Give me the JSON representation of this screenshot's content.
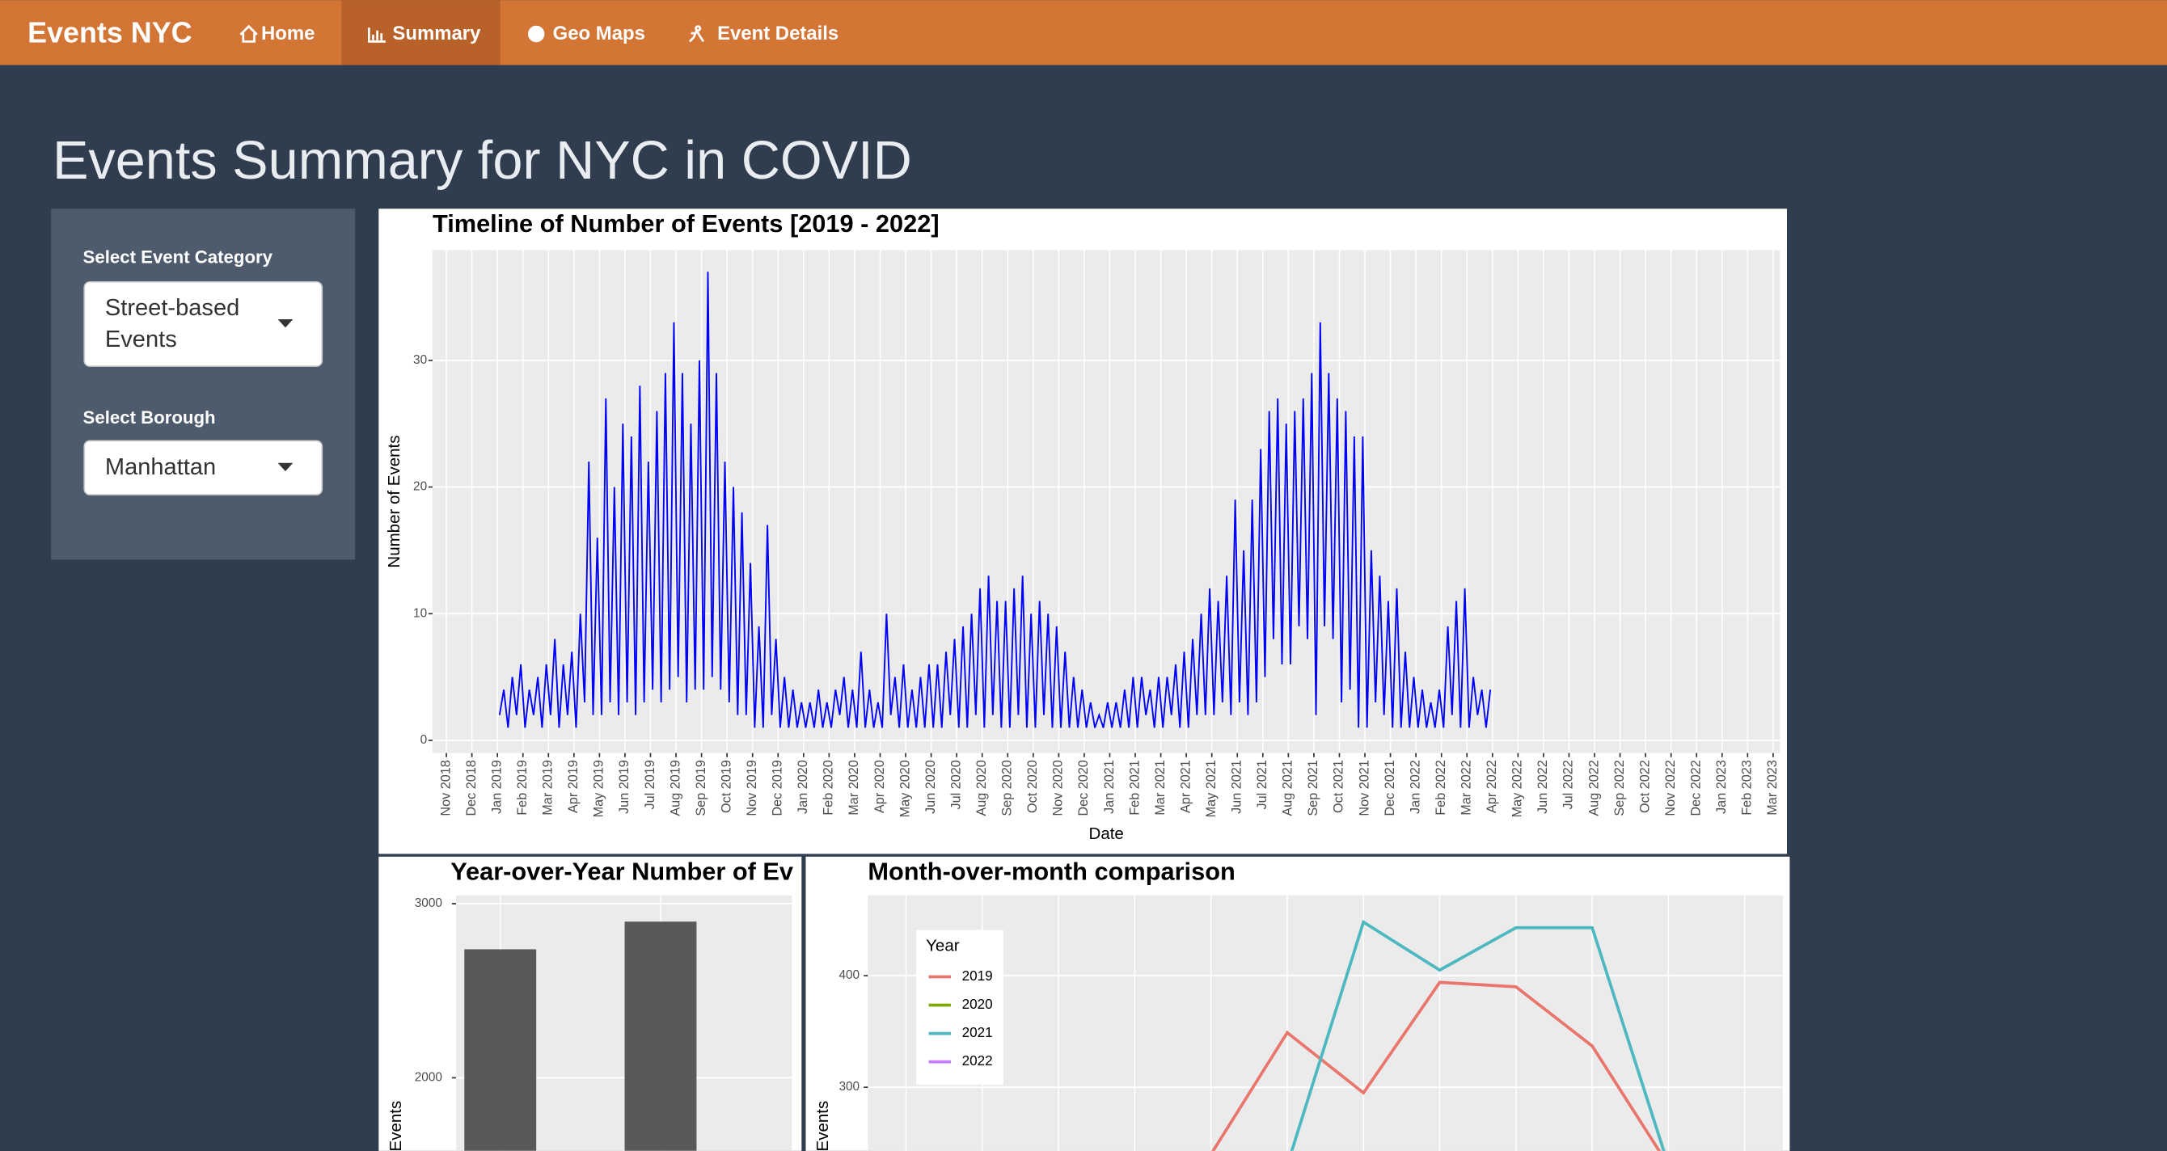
{
  "navbar": {
    "brand": "Events NYC",
    "items": [
      "Home",
      "Summary",
      "Geo Maps",
      "Event Details"
    ],
    "active": 1
  },
  "page_title": "Events Summary for NYC in COVID",
  "sidebar": {
    "category_label": "Select Event Category",
    "category_value": "Street-based Events",
    "borough_label": "Select Borough",
    "borough_value": "Manhattan"
  },
  "chart_data": [
    {
      "type": "line",
      "title": "Timeline of Number of Events [2019 - 2022]",
      "x_label": "Date",
      "y_label": "Number of Events",
      "color": "#0000ff",
      "ylim": [
        -1,
        38.7
      ],
      "yticks": [
        0,
        10,
        20,
        30
      ],
      "grid": true,
      "categories": [
        "Nov 2018",
        "Dec 2018",
        "Jan 2019",
        "Feb 2019",
        "Mar 2019",
        "Apr 2019",
        "May 2019",
        "Jun 2019",
        "Jul 2019",
        "Aug 2019",
        "Sep 2019",
        "Oct 2019",
        "Nov 2019",
        "Dec 2019",
        "Jan 2020",
        "Feb 2020",
        "Mar 2020",
        "Apr 2020",
        "May 2020",
        "Jun 2020",
        "Jul 2020",
        "Aug 2020",
        "Sep 2020",
        "Oct 2020",
        "Nov 2020",
        "Dec 2020",
        "Jan 2021",
        "Feb 2021",
        "Mar 2021",
        "Apr 2021",
        "May 2021",
        "Jun 2021",
        "Jul 2021",
        "Aug 2021",
        "Sep 2021",
        "Oct 2021",
        "Nov 2021",
        "Dec 2021",
        "Jan 2022",
        "Feb 2022",
        "Mar 2022",
        "Apr 2022",
        "May 2022",
        "Jun 2022",
        "Jul 2022",
        "Aug 2022",
        "Sep 2022",
        "Oct 2022",
        "Nov 2022",
        "Dec 2022",
        "Jan 2023",
        "Feb 2023",
        "Mar 2023"
      ],
      "values": [
        null,
        null,
        [
          2,
          4,
          1,
          5,
          2,
          6
        ],
        [
          1,
          4,
          2,
          5,
          1,
          6
        ],
        [
          2,
          8,
          1,
          6,
          2,
          7
        ],
        [
          1,
          10,
          3,
          22,
          2,
          16
        ],
        [
          2,
          27,
          3,
          20,
          2,
          25
        ],
        [
          3,
          24,
          2,
          28,
          3,
          22
        ],
        [
          4,
          26,
          3,
          29,
          4,
          33
        ],
        [
          5,
          29,
          3,
          25,
          4,
          30
        ],
        [
          4,
          37,
          5,
          29,
          4,
          22
        ],
        [
          3,
          20,
          2,
          18,
          2,
          14
        ],
        [
          1,
          9,
          1,
          17,
          2,
          8
        ],
        [
          1,
          5,
          1,
          4,
          1,
          3
        ],
        [
          1,
          3,
          1,
          4,
          1,
          3
        ],
        [
          1,
          4,
          2,
          5,
          1,
          4
        ],
        [
          1,
          7,
          1,
          4,
          1,
          3
        ],
        [
          1,
          10,
          2,
          5,
          1,
          6
        ],
        [
          1,
          4,
          1,
          5,
          1,
          6
        ],
        [
          1,
          6,
          1,
          7,
          2,
          8
        ],
        [
          1,
          9,
          1,
          10,
          2,
          12
        ],
        [
          1,
          13,
          2,
          11,
          1,
          11
        ],
        [
          1,
          12,
          2,
          13,
          1,
          10
        ],
        [
          1,
          11,
          2,
          10,
          1,
          9
        ],
        [
          1,
          7,
          1,
          5,
          1,
          4
        ],
        [
          1,
          3,
          1,
          2,
          1,
          3
        ],
        [
          1,
          3,
          1,
          4,
          1,
          5
        ],
        [
          1,
          5,
          2,
          4,
          1,
          5
        ],
        [
          1,
          5,
          2,
          6,
          1,
          7
        ],
        [
          1,
          8,
          2,
          10,
          2,
          12
        ],
        [
          2,
          11,
          3,
          13,
          2,
          19
        ],
        [
          3,
          15,
          2,
          19,
          3,
          23
        ],
        [
          5,
          26,
          8,
          27,
          6,
          25
        ],
        [
          6,
          26,
          9,
          27,
          8,
          29
        ],
        [
          2,
          33,
          9,
          29,
          8,
          27
        ],
        [
          3,
          26,
          4,
          24,
          1,
          24
        ],
        [
          1,
          15,
          3,
          13,
          2,
          11
        ],
        [
          1,
          12,
          1,
          7,
          1,
          5
        ],
        [
          1,
          4,
          1,
          3,
          1,
          4
        ],
        [
          1,
          9,
          2,
          11,
          1,
          12
        ],
        [
          1,
          5,
          2,
          4,
          1,
          4
        ],
        null,
        null,
        null,
        null,
        null,
        null,
        null,
        null,
        null,
        null,
        null,
        null
      ]
    },
    {
      "type": "bar",
      "title": "Year-over-Year Number of Ev",
      "y_label": "Events",
      "color": "#595959",
      "categories": [
        null,
        null
      ],
      "values": [
        2738,
        2897
      ],
      "ylim": [
        1580,
        3048
      ],
      "yticks": [
        2000,
        3000
      ],
      "grid": true
    },
    {
      "type": "line",
      "title": "Month-over-month comparison",
      "y_label": "Events",
      "legend_title": "Year",
      "categories": [
        null,
        null,
        null,
        null,
        null,
        null,
        null,
        null,
        null,
        null,
        null,
        null
      ],
      "ylim": [
        243,
        472
      ],
      "yticks": [
        300,
        400
      ],
      "grid": true,
      "series": [
        {
          "name": "2019",
          "color": "#e8766d",
          "values": [
            null,
            null,
            null,
            null,
            240,
            349,
            295,
            394,
            390,
            337,
            230,
            null
          ]
        },
        {
          "name": "2020",
          "color": "#7caa00",
          "values": [
            null,
            null,
            null,
            null,
            null,
            null,
            null,
            null,
            null,
            null,
            null,
            null
          ]
        },
        {
          "name": "2021",
          "color": "#4db8c0",
          "values": [
            null,
            null,
            null,
            null,
            null,
            230,
            448,
            405,
            443,
            443,
            230,
            null
          ]
        },
        {
          "name": "2022",
          "color": "#c77cff",
          "values": [
            null,
            null,
            null,
            null,
            null,
            null,
            null,
            null,
            null,
            null,
            null,
            null
          ]
        }
      ]
    }
  ]
}
